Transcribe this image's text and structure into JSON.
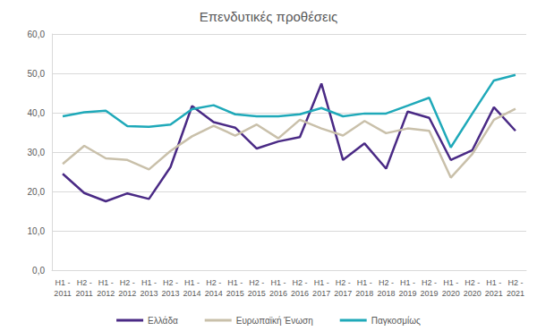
{
  "chart_data": {
    "type": "line",
    "title": "Επενδυτικές προθέσεις",
    "categories": [
      "H1 - 2011",
      "H2 - 2011",
      "H1 - 2012",
      "H2 - 2012",
      "H1 - 2013",
      "H2 - 2013",
      "H1 - 2014",
      "H2 - 2014",
      "H1 - 2015",
      "H2 - 2015",
      "H1 - 2016",
      "H2 - 2016",
      "H1 - 2017",
      "H2 - 2017",
      "H1 - 2018",
      "H2 - 2018",
      "H1 - 2019",
      "H2 - 2019",
      "H1 - 2020",
      "H2 - 2020",
      "H1 - 2021",
      "H2 - 2021"
    ],
    "series": [
      {
        "name": "Ελλάδα",
        "color": "#4a2a85",
        "values": [
          24.5,
          19.6,
          17.5,
          19.5,
          18.1,
          26.2,
          41.7,
          37.6,
          36.2,
          30.9,
          32.7,
          33.8,
          47.4,
          28.0,
          32.2,
          25.8,
          40.3,
          38.7,
          28.0,
          30.5,
          41.4,
          35.4
        ]
      },
      {
        "name": "Ευρωπαϊκή Ένωση",
        "color": "#c9c0aa",
        "values": [
          27.0,
          31.6,
          28.4,
          28.0,
          25.6,
          30.3,
          34.0,
          36.7,
          34.2,
          37.0,
          33.5,
          38.2,
          36.0,
          34.2,
          37.9,
          34.8,
          36.0,
          35.4,
          23.5,
          29.5,
          38.2,
          41.0
        ]
      },
      {
        "name": "Παγκοσμίως",
        "color": "#1fa9b9",
        "values": [
          39.1,
          40.1,
          40.5,
          36.6,
          36.4,
          37.0,
          40.9,
          41.9,
          39.6,
          39.1,
          39.1,
          39.6,
          41.2,
          39.1,
          39.8,
          39.8,
          41.8,
          43.8,
          31.2,
          39.8,
          48.2,
          49.6
        ]
      }
    ],
    "ylim": [
      0,
      60
    ],
    "yticks": [
      {
        "value": 0,
        "label": "0,0"
      },
      {
        "value": 10,
        "label": "10,0"
      },
      {
        "value": 20,
        "label": "20,0"
      },
      {
        "value": 30,
        "label": "30,0"
      },
      {
        "value": 40,
        "label": "40,0"
      },
      {
        "value": 50,
        "label": "50,0"
      },
      {
        "value": 60,
        "label": "60,0"
      }
    ],
    "grid": true,
    "legend": "bottom"
  }
}
